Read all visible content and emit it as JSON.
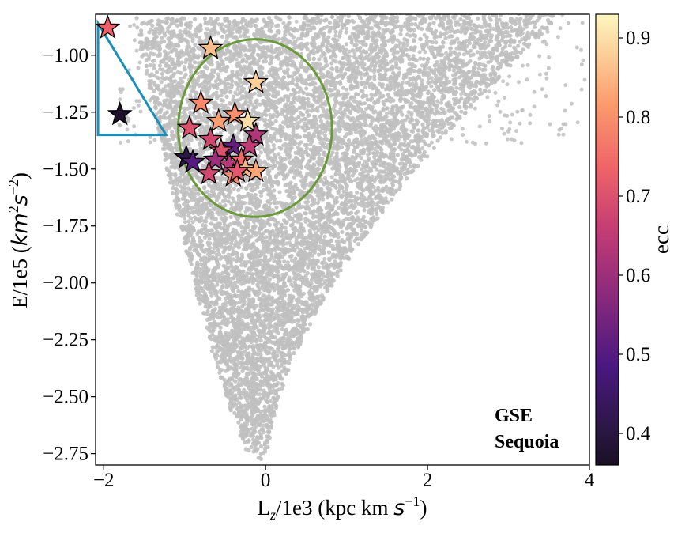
{
  "chart_data": {
    "type": "scatter",
    "xlabel_parts": {
      "base": "L",
      "sub": "z",
      "rest": "/1e3 (kpc km ",
      "var": "s",
      "sup": "−1",
      "close": ")"
    },
    "ylabel_parts": {
      "base": "E/1e5 (",
      "var1": "km",
      "sup1": "2",
      "var2": "s",
      "sup2": "−2",
      "close": ")"
    },
    "colorbar_label": "ecc",
    "xlim": [
      -2.1,
      4.0
    ],
    "ylim": [
      -2.8,
      -0.82
    ],
    "x_ticks": [
      -2,
      0,
      2,
      4
    ],
    "x_tick_labels": [
      "−2",
      "0",
      "2",
      "4"
    ],
    "y_ticks": [
      -1.0,
      -1.25,
      -1.5,
      -1.75,
      -2.0,
      -2.25,
      -2.5,
      -2.75
    ],
    "y_tick_labels": [
      "−1.00",
      "−1.25",
      "−1.50",
      "−1.75",
      "−2.00",
      "−2.25",
      "−2.50",
      "−2.75"
    ],
    "colorbar_range": [
      0.36,
      0.93
    ],
    "colorbar_ticks": [
      0.4,
      0.5,
      0.6,
      0.7,
      0.8,
      0.9
    ],
    "colorbar_tick_labels": [
      "0.4",
      "0.5",
      "0.6",
      "0.7",
      "0.8",
      "0.9"
    ],
    "background_color": "#c0c0c0",
    "gse_ellipse": {
      "center": [
        -0.13,
        -1.32
      ],
      "radius_x": 0.95,
      "radius_y": 0.39,
      "color": "#6a9a3a"
    },
    "sequoia_triangle": {
      "vertices": [
        [
          -2.07,
          -0.86
        ],
        [
          -2.07,
          -1.35
        ],
        [
          -1.23,
          -1.35
        ]
      ],
      "color": "#1a8fb8"
    },
    "legend": [
      {
        "label": "GSE",
        "color": "#5a8a2e"
      },
      {
        "label": "Sequoia",
        "color": "#1a8fb8"
      }
    ],
    "stars": [
      {
        "x": -1.95,
        "y": -0.88,
        "ecc": 0.73
      },
      {
        "x": -1.8,
        "y": -1.26,
        "ecc": 0.37
      },
      {
        "x": -0.68,
        "y": -0.97,
        "ecc": 0.86
      },
      {
        "x": -0.12,
        "y": -1.12,
        "ecc": 0.88
      },
      {
        "x": -0.8,
        "y": -1.21,
        "ecc": 0.79
      },
      {
        "x": -0.38,
        "y": -1.26,
        "ecc": 0.8
      },
      {
        "x": -0.58,
        "y": -1.29,
        "ecc": 0.82
      },
      {
        "x": -0.22,
        "y": -1.29,
        "ecc": 0.9
      },
      {
        "x": -0.94,
        "y": -1.32,
        "ecc": 0.7
      },
      {
        "x": -0.12,
        "y": -1.35,
        "ecc": 0.63
      },
      {
        "x": -0.68,
        "y": -1.37,
        "ecc": 0.68
      },
      {
        "x": -0.4,
        "y": -1.4,
        "ecc": 0.52
      },
      {
        "x": -0.2,
        "y": -1.4,
        "ecc": 0.65
      },
      {
        "x": -0.55,
        "y": -1.42,
        "ecc": 0.7
      },
      {
        "x": -0.98,
        "y": -1.45,
        "ecc": 0.4
      },
      {
        "x": -0.9,
        "y": -1.47,
        "ecc": 0.5
      },
      {
        "x": -0.45,
        "y": -1.48,
        "ecc": 0.64
      },
      {
        "x": -0.62,
        "y": -1.46,
        "ecc": 0.6
      },
      {
        "x": -0.3,
        "y": -1.46,
        "ecc": 0.74
      },
      {
        "x": -0.25,
        "y": -1.5,
        "ecc": 0.85
      },
      {
        "x": -0.12,
        "y": -1.51,
        "ecc": 0.83
      },
      {
        "x": -0.7,
        "y": -1.52,
        "ecc": 0.68
      },
      {
        "x": -0.4,
        "y": -1.53,
        "ecc": 0.79
      },
      {
        "x": -0.35,
        "y": -1.51,
        "ecc": 0.71
      }
    ]
  }
}
